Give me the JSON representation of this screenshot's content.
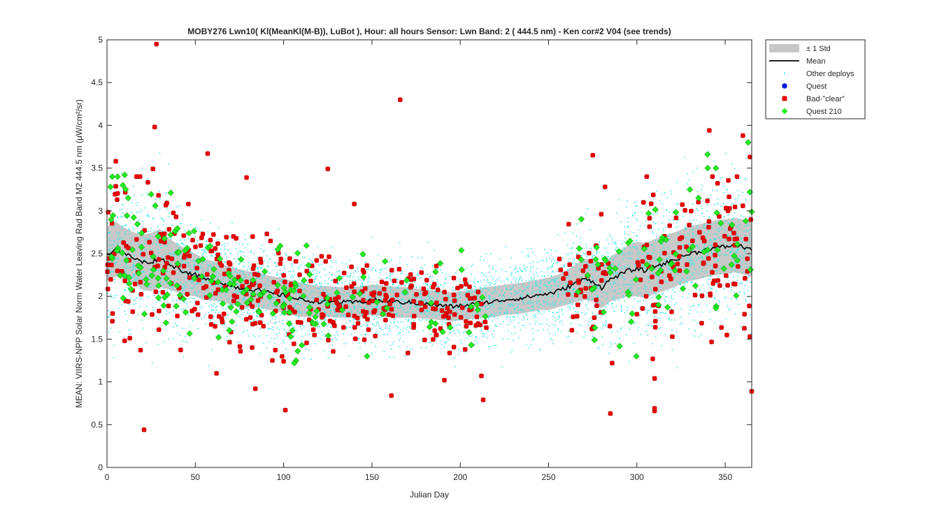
{
  "chart_data": {
    "type": "scatter",
    "title": "MOBY276   Lwn10( Kl(MeanKl(M-B)), LuBot ),   Hour: all hours  Sensor: Lwn Band: 2 ( 444.5 nm)  - Ken cor#2 V04 (see trends)",
    "xlabel": "Julian Day",
    "ylabel": "MEAN: VIIRS-NPP Solar Norm Water Leaving Rad Band M2 444.5 nm (μW/cm²/sr)",
    "xlim": [
      0,
      365
    ],
    "ylim": [
      0,
      5
    ],
    "xticks": [
      "0",
      "50",
      "100",
      "150",
      "200",
      "250",
      "300",
      "350"
    ],
    "yticks": [
      "0",
      "0.5",
      "1",
      "1.5",
      "2",
      "2.5",
      "3",
      "3.5",
      "4",
      "4.5",
      "5"
    ],
    "grid": false,
    "legend_position": "outside-top-right",
    "legend": [
      {
        "label": "± 1 Std",
        "kind": "patch",
        "color": "#c8c8c8"
      },
      {
        "label": "Mean",
        "kind": "line",
        "color": "#000000"
      },
      {
        "label": "Other deploys",
        "kind": "dot",
        "color": "#3ae8e8"
      },
      {
        "label": "Quest",
        "kind": "circle",
        "color": "#0018d8"
      },
      {
        "label": "Bad-\"clear\"",
        "kind": "square",
        "color": "#e80000"
      },
      {
        "label": "Quest 210",
        "kind": "diamond",
        "color": "#22ee22"
      }
    ],
    "mean": {
      "x": [
        0,
        5,
        10,
        15,
        20,
        25,
        30,
        35,
        40,
        45,
        50,
        55,
        60,
        65,
        70,
        75,
        80,
        85,
        90,
        95,
        100,
        105,
        110,
        115,
        120,
        125,
        130,
        135,
        140,
        145,
        150,
        155,
        160,
        165,
        170,
        175,
        180,
        185,
        190,
        195,
        200,
        205,
        210,
        215,
        220,
        225,
        230,
        235,
        240,
        245,
        250,
        255,
        260,
        265,
        270,
        275,
        280,
        285,
        290,
        295,
        300,
        305,
        310,
        315,
        320,
        325,
        330,
        335,
        340,
        345,
        350,
        355,
        360,
        365
      ],
      "y": [
        2.5,
        2.55,
        2.5,
        2.45,
        2.4,
        2.4,
        2.45,
        2.38,
        2.33,
        2.28,
        2.25,
        2.2,
        2.18,
        2.16,
        2.12,
        2.1,
        2.08,
        2.08,
        2.05,
        2.03,
        2.01,
        1.98,
        1.96,
        1.95,
        1.94,
        1.94,
        1.93,
        1.93,
        1.93,
        1.94,
        1.96,
        1.95,
        1.94,
        1.93,
        1.93,
        1.92,
        1.91,
        1.9,
        1.89,
        1.88,
        1.89,
        1.9,
        1.92,
        1.93,
        1.94,
        1.96,
        1.97,
        1.98,
        2.0,
        2.02,
        2.03,
        2.06,
        2.1,
        2.15,
        2.2,
        2.18,
        2.1,
        2.2,
        2.25,
        2.3,
        2.32,
        2.3,
        2.35,
        2.38,
        2.42,
        2.46,
        2.5,
        2.52,
        2.55,
        2.57,
        2.58,
        2.6,
        2.58,
        2.55
      ]
    },
    "std": [
      0.32,
      0.32,
      0.3,
      0.3,
      0.32,
      0.34,
      0.34,
      0.3,
      0.28,
      0.27,
      0.25,
      0.24,
      0.23,
      0.22,
      0.22,
      0.22,
      0.21,
      0.21,
      0.2,
      0.2,
      0.2,
      0.2,
      0.2,
      0.19,
      0.18,
      0.18,
      0.18,
      0.18,
      0.18,
      0.18,
      0.18,
      0.18,
      0.18,
      0.18,
      0.18,
      0.17,
      0.17,
      0.17,
      0.17,
      0.17,
      0.17,
      0.17,
      0.17,
      0.18,
      0.18,
      0.18,
      0.18,
      0.18,
      0.18,
      0.18,
      0.19,
      0.19,
      0.2,
      0.22,
      0.24,
      0.24,
      0.24,
      0.26,
      0.28,
      0.3,
      0.32,
      0.32,
      0.32,
      0.32,
      0.32,
      0.32,
      0.32,
      0.32,
      0.32,
      0.32,
      0.32,
      0.32,
      0.32,
      0.32
    ],
    "bad_clear_outliers": [
      {
        "x": 28,
        "y": 4.95
      },
      {
        "x": 27,
        "y": 3.98
      },
      {
        "x": 26,
        "y": 3.49
      },
      {
        "x": 57,
        "y": 3.67
      },
      {
        "x": 79,
        "y": 3.39
      },
      {
        "x": 125,
        "y": 3.49
      },
      {
        "x": 140,
        "y": 3.08
      },
      {
        "x": 166,
        "y": 4.3
      },
      {
        "x": 275,
        "y": 3.65
      },
      {
        "x": 282,
        "y": 3.28
      },
      {
        "x": 341,
        "y": 3.94
      },
      {
        "x": 360,
        "y": 3.88
      },
      {
        "x": 364,
        "y": 3.63
      },
      {
        "x": 5,
        "y": 3.58
      },
      {
        "x": 21,
        "y": 0.44
      },
      {
        "x": 101,
        "y": 0.67
      },
      {
        "x": 161,
        "y": 0.84
      },
      {
        "x": 191,
        "y": 1.02
      },
      {
        "x": 212,
        "y": 1.07
      },
      {
        "x": 213,
        "y": 0.79
      },
      {
        "x": 285,
        "y": 0.63
      },
      {
        "x": 286,
        "y": 1.22
      },
      {
        "x": 310,
        "y": 0.66
      },
      {
        "x": 310,
        "y": 0.69
      },
      {
        "x": 310,
        "y": 1.04
      },
      {
        "x": 309,
        "y": 1.27
      },
      {
        "x": 365,
        "y": 0.89
      },
      {
        "x": 84,
        "y": 0.92
      },
      {
        "x": 62,
        "y": 1.1
      },
      {
        "x": 10,
        "y": 1.48
      },
      {
        "x": 100,
        "y": 1.24
      }
    ]
  }
}
